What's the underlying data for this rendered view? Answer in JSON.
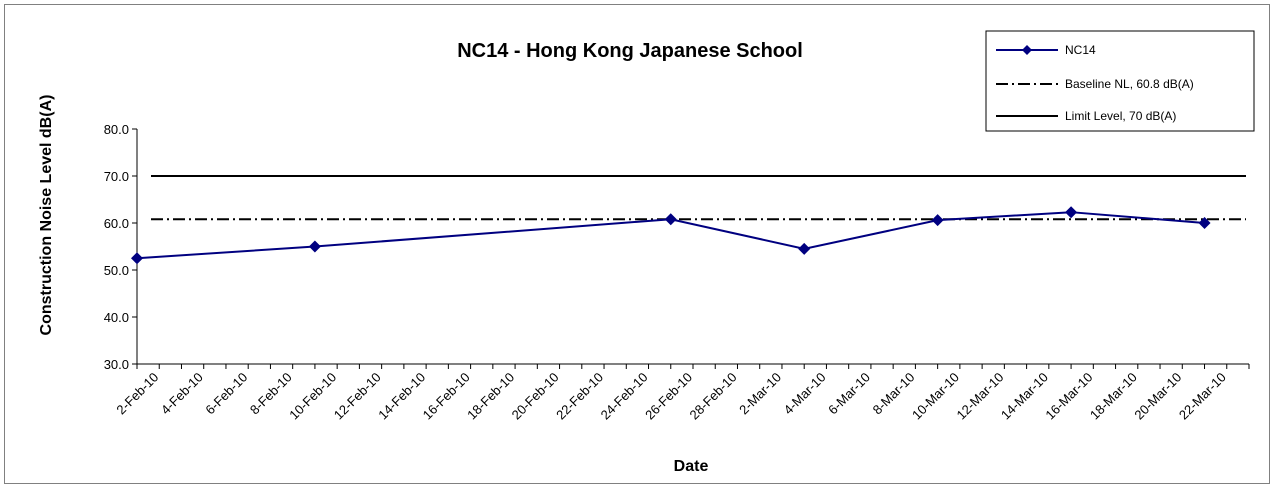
{
  "chart_data": {
    "type": "line",
    "title": "NC14 - Hong Kong Japanese School",
    "xlabel": "Date",
    "ylabel": "Construction Noise Level  dB(A)",
    "ylim": [
      30,
      80
    ],
    "yticks": [
      "30.0",
      "40.0",
      "50.0",
      "60.0",
      "70.0",
      "80.0"
    ],
    "x_range": [
      "2010-02-01",
      "2010-03-23"
    ],
    "x_tick_labels": [
      "2-Feb-10",
      "4-Feb-10",
      "6-Feb-10",
      "8-Feb-10",
      "10-Feb-10",
      "12-Feb-10",
      "14-Feb-10",
      "16-Feb-10",
      "18-Feb-10",
      "20-Feb-10",
      "22-Feb-10",
      "24-Feb-10",
      "26-Feb-10",
      "28-Feb-10",
      "2-Mar-10",
      "4-Mar-10",
      "6-Mar-10",
      "8-Mar-10",
      "10-Mar-10",
      "12-Mar-10",
      "14-Mar-10",
      "16-Mar-10",
      "18-Mar-10",
      "20-Mar-10",
      "22-Mar-10"
    ],
    "grid": false,
    "legend_position": "top-right",
    "series": [
      {
        "name": "NC14",
        "style": "line-diamond-markers",
        "color": "#000080",
        "points": [
          {
            "x": "2010-02-01",
            "y": 52.5
          },
          {
            "x": "2010-02-09",
            "y": 55.0
          },
          {
            "x": "2010-02-25",
            "y": 60.8
          },
          {
            "x": "2010-03-03",
            "y": 54.5
          },
          {
            "x": "2010-03-09",
            "y": 60.6
          },
          {
            "x": "2010-03-15",
            "y": 62.3
          },
          {
            "x": "2010-03-21",
            "y": 60.0
          }
        ]
      },
      {
        "name": "Baseline NL, 60.8 dB(A)",
        "style": "dash-dot",
        "color": "#000000",
        "constant": 60.8
      },
      {
        "name": "Limit Level, 70 dB(A)",
        "style": "solid",
        "color": "#000000",
        "constant": 70
      }
    ]
  }
}
